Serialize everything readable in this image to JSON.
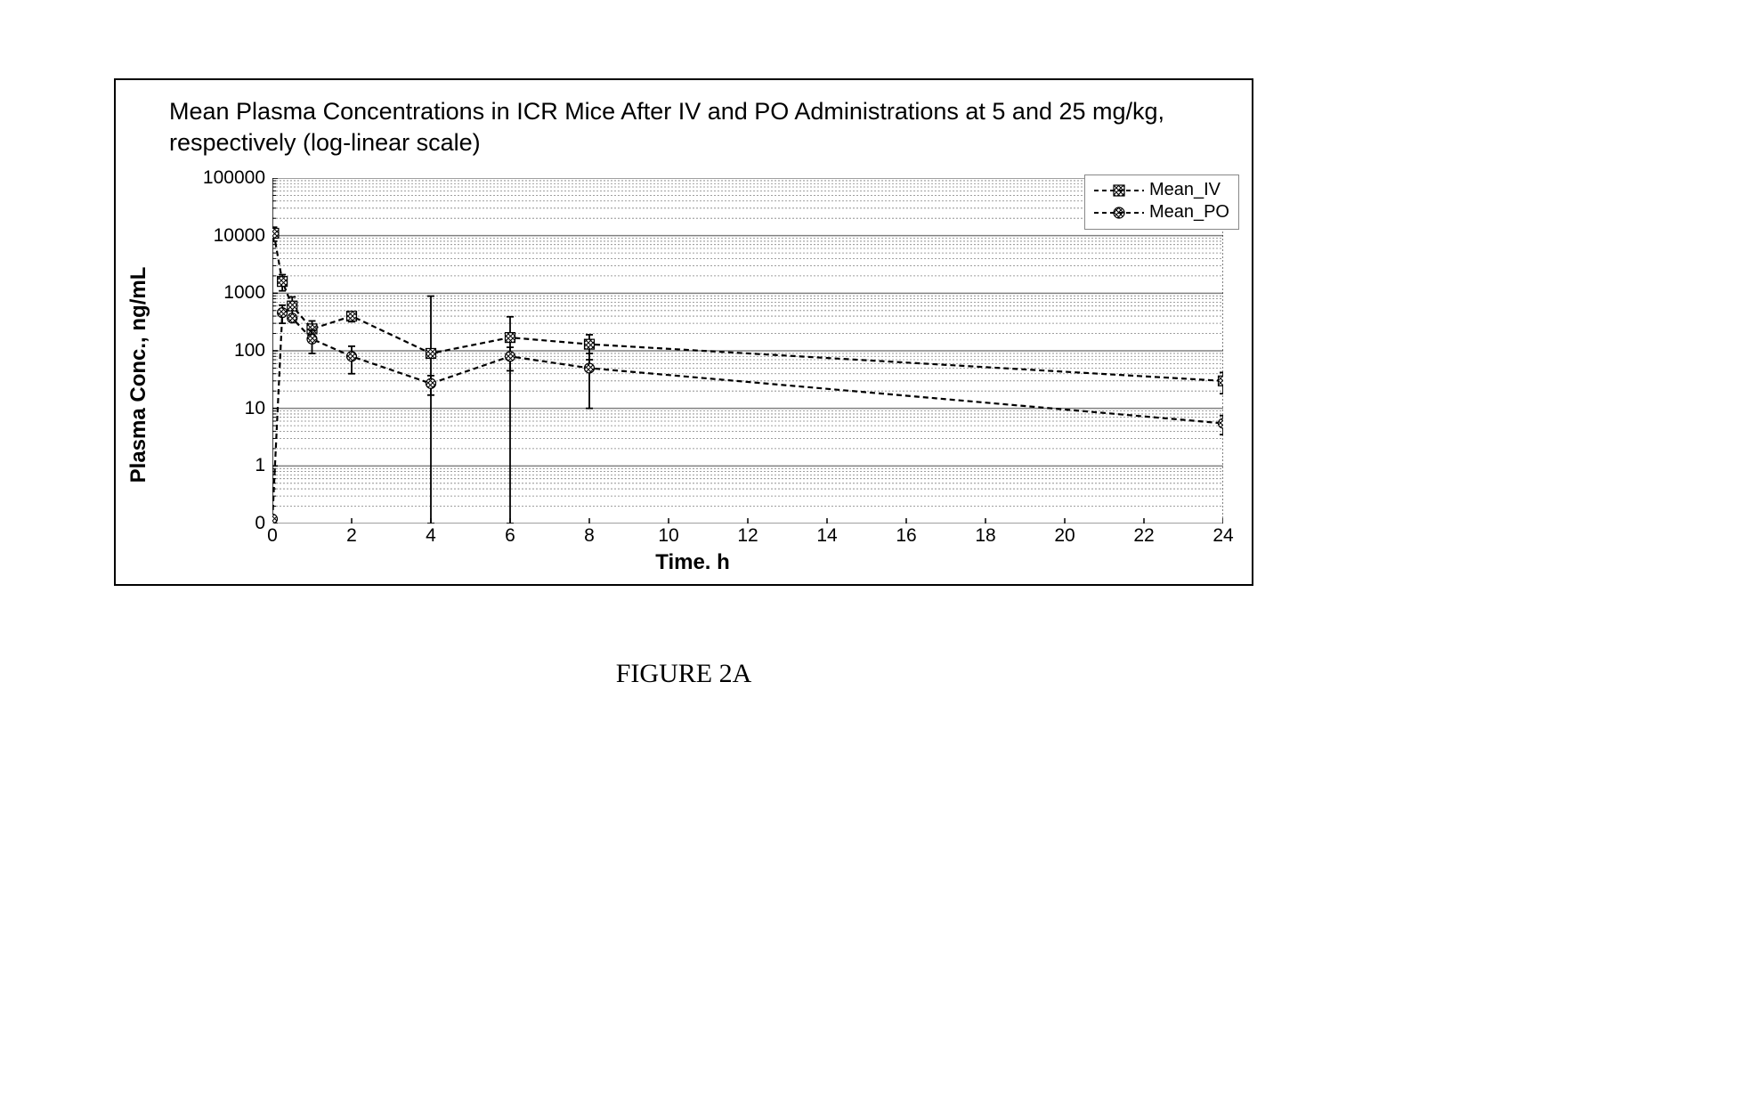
{
  "figure_caption": "FIGURE 2A",
  "chart": {
    "type": "line",
    "title": "Mean Plasma Concentrations in ICR Mice After IV and PO Administrations at 5 and 25 mg/kg, respectively (log-linear scale)",
    "xlabel": "Time. h",
    "ylabel": "Plasma Conc., ng/mL",
    "title_fontsize": 27,
    "label_fontsize": 24,
    "tick_fontsize": 21,
    "label_fontweight": "bold",
    "font_family": "Arial",
    "background_color": "#ffffff",
    "panel_border_color": "#000000",
    "axis_color": "#000000",
    "grid_major_color": "#808080",
    "grid_minor_color": "#808080",
    "grid_major_width": 1.5,
    "grid_minor_dash": "2,2",
    "grid_minor_width": 0.8,
    "x": {
      "min": 0,
      "max": 24,
      "tick_step": 2,
      "ticks": [
        0,
        2,
        4,
        6,
        8,
        10,
        12,
        14,
        16,
        18,
        20,
        22,
        24
      ],
      "scale": "linear"
    },
    "y": {
      "scale": "log",
      "labels": [
        "0",
        "1",
        "10",
        "100",
        "1000",
        "10000",
        "100000"
      ],
      "label_logpos": [
        -1,
        0,
        1,
        2,
        3,
        4,
        5
      ],
      "logmin": -1,
      "logmax": 5,
      "minor_ticks_per_decade": [
        2,
        3,
        4,
        5,
        6,
        7,
        8,
        9
      ]
    },
    "line_width": 2.2,
    "line_dash": "6,4",
    "marker_size": 11,
    "errorbar_width": 1.8,
    "errorbar_cap": 8,
    "legend": {
      "position": "top-right",
      "border_color": "#888888",
      "background_color": "#ffffff",
      "fontsize": 20,
      "items": [
        {
          "label": "Mean_IV",
          "marker": "hatched-square",
          "color": "#000000"
        },
        {
          "label": "Mean_PO",
          "marker": "hatched-circle",
          "color": "#000000"
        }
      ]
    },
    "series": [
      {
        "name": "Mean_IV",
        "color": "#000000",
        "marker": "hatched-square",
        "x": [
          0.033,
          0.25,
          0.5,
          1,
          2,
          4,
          6,
          8,
          24
        ],
        "y": [
          11000,
          1600,
          600,
          240,
          400,
          90,
          170,
          130,
          30
        ],
        "err": [
          3000,
          500,
          260,
          90,
          80,
          800,
          220,
          60,
          12
        ]
      },
      {
        "name": "Mean_PO",
        "color": "#000000",
        "marker": "hatched-circle",
        "x": [
          0,
          0.25,
          0.5,
          1,
          2,
          4,
          6,
          8,
          24
        ],
        "y": [
          0.12,
          460,
          370,
          160,
          80,
          27,
          80,
          50,
          5.5
        ],
        "err": [
          0,
          160,
          0,
          70,
          40,
          10,
          35,
          40,
          2
        ]
      }
    ]
  }
}
